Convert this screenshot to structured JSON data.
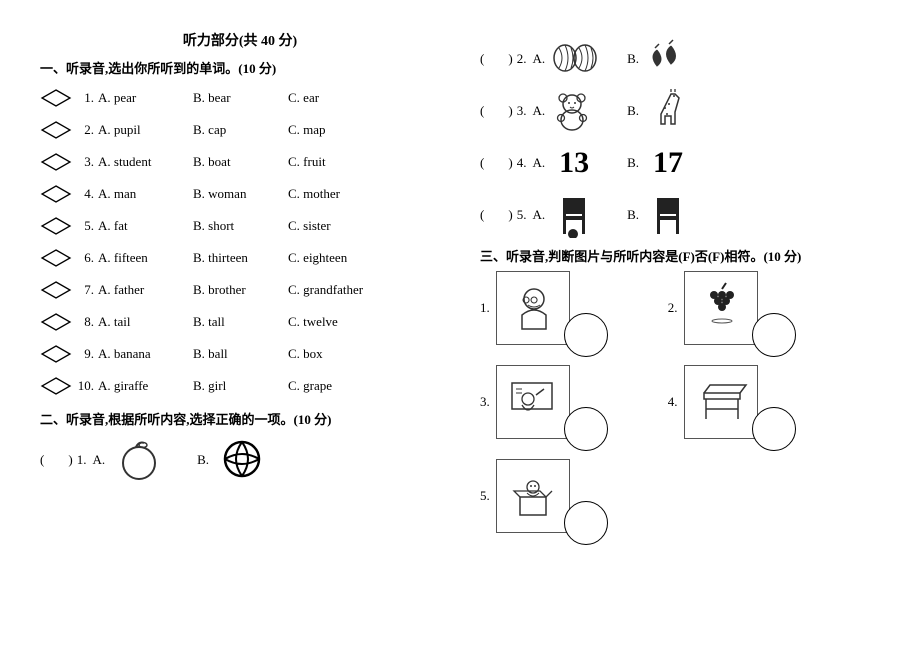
{
  "header": {
    "title": "听力部分(共 40 分)"
  },
  "section1": {
    "title": "一、听录音,选出你所听到的单词。(10 分)",
    "rows": [
      {
        "n": "1.",
        "a": "A. pear",
        "b": "B. bear",
        "c": "C. ear"
      },
      {
        "n": "2.",
        "a": "A. pupil",
        "b": "B. cap",
        "c": "C. map"
      },
      {
        "n": "3.",
        "a": "A. student",
        "b": "B. boat",
        "c": "C. fruit"
      },
      {
        "n": "4.",
        "a": "A. man",
        "b": "B. woman",
        "c": "C. mother"
      },
      {
        "n": "5.",
        "a": "A. fat",
        "b": "B. short",
        "c": "C. sister"
      },
      {
        "n": "6.",
        "a": "A. fifteen",
        "b": "B. thirteen",
        "c": "C. eighteen"
      },
      {
        "n": "7.",
        "a": "A. father",
        "b": "B. brother",
        "c": "C. grandfather"
      },
      {
        "n": "8.",
        "a": "A. tail",
        "b": "B. tall",
        "c": "C. twelve"
      },
      {
        "n": "9.",
        "a": "A. banana",
        "b": "B. ball",
        "c": "C. box"
      },
      {
        "n": "10.",
        "a": "A. giraffe",
        "b": "B. girl",
        "c": "C. grape"
      }
    ]
  },
  "section2": {
    "title": "二、听录音,根据所听内容,选择正确的一项。(10 分)",
    "paren_open": "(",
    "paren_close": ")",
    "items": [
      {
        "n": "1.",
        "a": "A.",
        "b": "B.",
        "iconA": "orange",
        "iconB": "ball"
      },
      {
        "n": "2.",
        "a": "A.",
        "b": "B.",
        "iconA": "watermelons",
        "iconB": "strawberries"
      },
      {
        "n": "3.",
        "a": "A.",
        "b": "B.",
        "iconA": "teddy",
        "iconB": "giraffe"
      },
      {
        "n": "4.",
        "a": "A.",
        "b": "B.",
        "iconA": "num13",
        "iconB": "num17",
        "textA": "13",
        "textB": "17"
      },
      {
        "n": "5.",
        "a": "A.",
        "b": "B.",
        "iconA": "chair-ball",
        "iconB": "chair"
      }
    ]
  },
  "section3": {
    "title": "三、听录音,判断图片与所听内容是(F)否(F)相符。(10 分)",
    "items": [
      {
        "n": "1.",
        "icon": "grandpa"
      },
      {
        "n": "2.",
        "icon": "grapes"
      },
      {
        "n": "3.",
        "icon": "teacher"
      },
      {
        "n": "4.",
        "icon": "desk"
      },
      {
        "n": "5.",
        "icon": "box-toy"
      }
    ]
  },
  "style": {
    "text_color": "#000000",
    "bg_color": "#ffffff",
    "stroke": "#333333",
    "font_size_body": 13,
    "font_size_header": 14,
    "font_size_bignum": 30
  }
}
